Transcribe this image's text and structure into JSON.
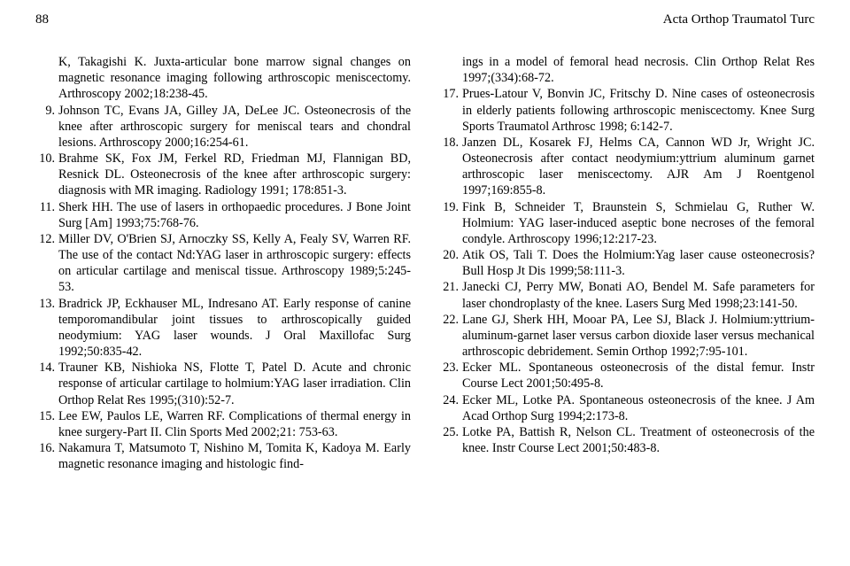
{
  "header": {
    "page_number": "88",
    "journal": "Acta Orthop Traumatol Turc"
  },
  "left_partial": "K, Takagishi K. Juxta-articular bone marrow signal changes on magnetic resonance imaging following arthroscopic meniscectomy. Arthroscopy 2002;18:238-45.",
  "left_refs": [
    {
      "n": "9.",
      "t": "Johnson TC, Evans JA, Gilley JA, DeLee JC. Osteonecrosis of the knee after arthroscopic surgery for meniscal tears and chondral lesions. Arthroscopy 2000;16:254-61."
    },
    {
      "n": "10.",
      "t": "Brahme SK, Fox JM, Ferkel RD, Friedman MJ, Flannigan BD, Resnick DL. Osteonecrosis of the knee after arthroscopic surgery: diagnosis with MR imaging. Radiology 1991; 178:851-3."
    },
    {
      "n": "11.",
      "t": "Sherk HH. The use of lasers in orthopaedic procedures. J Bone Joint Surg [Am] 1993;75:768-76."
    },
    {
      "n": "12.",
      "t": "Miller DV, O'Brien SJ, Arnoczky SS, Kelly A, Fealy SV, Warren RF. The use of the contact Nd:YAG laser in arthroscopic surgery: effects on articular cartilage and meniscal tissue. Arthroscopy 1989;5:245-53."
    },
    {
      "n": "13.",
      "t": "Bradrick JP, Eckhauser ML, Indresano AT. Early response of canine temporomandibular joint tissues to arthroscopically guided neodymium: YAG laser wounds. J Oral Maxillofac Surg 1992;50:835-42."
    },
    {
      "n": "14.",
      "t": "Trauner KB, Nishioka NS, Flotte T, Patel D. Acute and chronic response of articular cartilage to holmium:YAG laser irradiation. Clin Orthop Relat Res 1995;(310):52-7."
    },
    {
      "n": "15.",
      "t": "Lee EW, Paulos LE, Warren RF. Complications of thermal energy in knee surgery-Part II. Clin Sports Med 2002;21: 753-63."
    },
    {
      "n": "16.",
      "t": "Nakamura T, Matsumoto T, Nishino M, Tomita K, Kadoya M. Early magnetic resonance imaging and histologic find-"
    }
  ],
  "right_partial": "ings in a model of femoral head necrosis. Clin Orthop Relat Res 1997;(334):68-72.",
  "right_refs": [
    {
      "n": "17.",
      "t": "Prues-Latour V, Bonvin JC, Fritschy D. Nine cases of osteonecrosis in elderly patients following arthroscopic meniscectomy. Knee Surg Sports Traumatol Arthrosc 1998; 6:142-7."
    },
    {
      "n": "18.",
      "t": "Janzen DL, Kosarek FJ, Helms CA, Cannon WD Jr, Wright JC. Osteonecrosis after contact neodymium:yttrium aluminum garnet arthroscopic laser meniscectomy. AJR Am J Roentgenol 1997;169:855-8."
    },
    {
      "n": "19.",
      "t": "Fink B, Schneider T, Braunstein S, Schmielau G, Ruther W. Holmium: YAG laser-induced aseptic bone necroses of the femoral condyle. Arthroscopy 1996;12:217-23."
    },
    {
      "n": "20.",
      "t": "Atik OS, Tali T. Does the Holmium:Yag laser cause osteonecrosis? Bull Hosp Jt Dis 1999;58:111-3."
    },
    {
      "n": "21.",
      "t": "Janecki CJ, Perry MW, Bonati AO, Bendel M. Safe parameters for laser chondroplasty of the knee. Lasers Surg Med 1998;23:141-50."
    },
    {
      "n": "22.",
      "t": "Lane GJ, Sherk HH, Mooar PA, Lee SJ, Black J. Holmium:yttrium-aluminum-garnet laser versus carbon dioxide laser versus mechanical arthroscopic debridement. Semin Orthop 1992;7:95-101."
    },
    {
      "n": "23.",
      "t": "Ecker ML. Spontaneous osteonecrosis of the distal femur. Instr Course Lect 2001;50:495-8."
    },
    {
      "n": "24.",
      "t": "Ecker ML, Lotke PA. Spontaneous osteonecrosis of the knee. J Am Acad Orthop Surg 1994;2:173-8."
    },
    {
      "n": "25.",
      "t": "Lotke PA, Battish R, Nelson CL. Treatment of osteonecrosis of the knee. Instr Course Lect 2001;50:483-8."
    }
  ]
}
